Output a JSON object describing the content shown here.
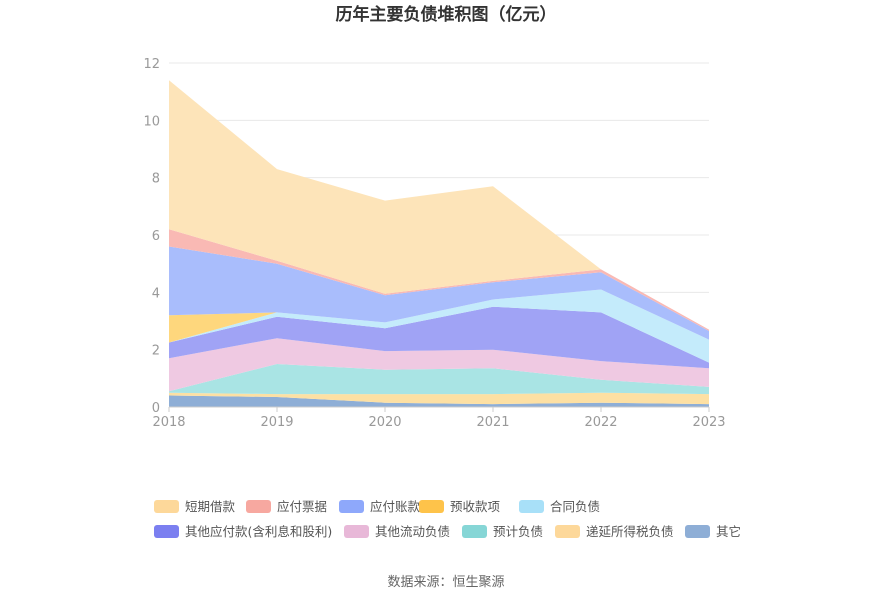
{
  "chart_data": {
    "type": "area",
    "stacked": true,
    "title": "历年主要负债堆积图（亿元）",
    "x": [
      "2018",
      "2019",
      "2020",
      "2021",
      "2022",
      "2023"
    ],
    "yticks": [
      "0",
      "2",
      "4",
      "6",
      "8",
      "10",
      "12"
    ],
    "ylim": [
      0,
      12
    ],
    "grid": true,
    "legend_position": "bottom",
    "series": [
      {
        "name": "其它",
        "color": "#8eaed6",
        "values": [
          0.4,
          0.35,
          0.15,
          0.1,
          0.15,
          0.1
        ]
      },
      {
        "name": "递延所得税负债",
        "color": "#fde0a3",
        "values": [
          0.1,
          0.1,
          0.3,
          0.35,
          0.35,
          0.35
        ]
      },
      {
        "name": "预计负债",
        "color": "#a9e4e4",
        "values": [
          0.05,
          1.05,
          0.85,
          0.9,
          0.45,
          0.25
        ]
      },
      {
        "name": "其他流动负债",
        "color": "#efc9e2",
        "values": [
          1.15,
          0.9,
          0.65,
          0.65,
          0.65,
          0.65
        ]
      },
      {
        "name": "其他应付款(含利息和股利)",
        "color": "#a0a3f5",
        "values": [
          0.55,
          0.75,
          0.8,
          1.5,
          1.7,
          0.2
        ]
      },
      {
        "name": "合同负债",
        "color": "#c4ebfb",
        "values": [
          0,
          0.15,
          0.2,
          0.25,
          0.8,
          0.8
        ]
      },
      {
        "name": "预收款项",
        "color": "#fed77d",
        "values": [
          0.95,
          0,
          0,
          0,
          0,
          0
        ]
      },
      {
        "name": "应付账款",
        "color": "#a9bdfc",
        "values": [
          2.4,
          1.7,
          0.95,
          0.6,
          0.6,
          0.3
        ]
      },
      {
        "name": "应付票据",
        "color": "#f9b9b4",
        "values": [
          0.6,
          0.1,
          0.05,
          0.05,
          0.1,
          0.05
        ]
      },
      {
        "name": "短期借款",
        "color": "#fde4b9",
        "values": [
          5.2,
          3.2,
          3.25,
          3.3,
          0,
          0
        ]
      }
    ],
    "legend": [
      {
        "name": "短期借款",
        "color": "#fdd89a"
      },
      {
        "name": "应付票据",
        "color": "#f7a8a0"
      },
      {
        "name": "应付账款",
        "color": "#8ea8fb"
      },
      {
        "name": "预收款项",
        "color": "#fec34a"
      },
      {
        "name": "合同负债",
        "color": "#a8e0f8"
      },
      {
        "name": "其他应付款(含利息和股利)",
        "color": "#7b7ff0"
      },
      {
        "name": "其他流动负债",
        "color": "#e8b8d8"
      },
      {
        "name": "预计负债",
        "color": "#86d6d6"
      },
      {
        "name": "递延所得税负债",
        "color": "#fdd89a"
      },
      {
        "name": "其它",
        "color": "#8eaed6"
      }
    ]
  },
  "source": "数据来源：恒生聚源"
}
